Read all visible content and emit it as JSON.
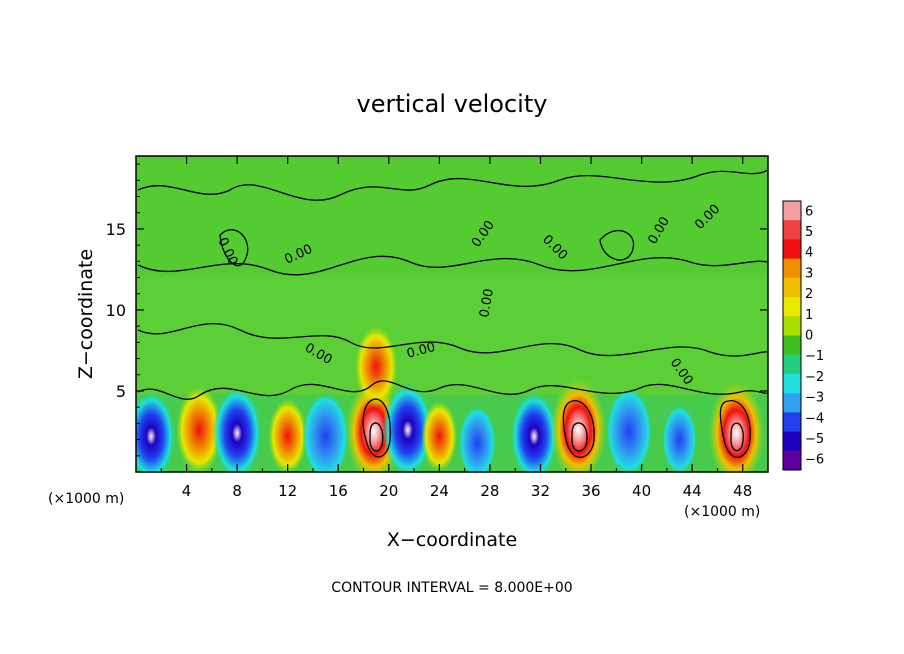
{
  "chart_data": {
    "type": "heatmap",
    "title": "vertical velocity",
    "xlabel": "X−coordinate",
    "ylabel": "Z−coordinate",
    "x_unit_left": "(×1000 m)",
    "x_unit_right": "(×1000 m)",
    "xlim": [
      0,
      50
    ],
    "ylim": [
      0,
      19.5
    ],
    "x_ticks": [
      4,
      8,
      12,
      16,
      20,
      24,
      28,
      32,
      36,
      40,
      44,
      48
    ],
    "x_tick_labels": [
      "4",
      "8",
      "12",
      "16",
      "20",
      "24",
      "28",
      "32",
      "36",
      "40",
      "44",
      "48"
    ],
    "y_ticks": [
      5,
      10,
      15
    ],
    "y_tick_labels": [
      "5",
      "10",
      "15"
    ],
    "colorbar": {
      "labels": [
        "6",
        "5",
        "4",
        "3",
        "2",
        "1",
        "0",
        "−1",
        "−2",
        "−3",
        "−4",
        "−5",
        "−6"
      ],
      "colors": [
        "#f4a0a0",
        "#f04040",
        "#f01010",
        "#f09000",
        "#f0c000",
        "#e8e800",
        "#a8e000",
        "#40c020",
        "#20d080",
        "#20e0e0",
        "#30a0f0",
        "#2040f0",
        "#2000c0",
        "#6000a0"
      ],
      "range": [
        -6,
        6
      ]
    },
    "contour_label": "0.00",
    "contour_interval_text": "CONTOUR INTERVAL = 8.000E+00",
    "cells": [
      {
        "x": 1.2,
        "z": 2.2,
        "w": -4.6
      },
      {
        "x": 5.0,
        "z": 2.6,
        "w": 4.2
      },
      {
        "x": 8.0,
        "z": 2.4,
        "w": -4.8
      },
      {
        "x": 12.0,
        "z": 2.2,
        "w": 2.8
      },
      {
        "x": 15.0,
        "z": 2.2,
        "w": -4.2
      },
      {
        "x": 18.8,
        "z": 2.5,
        "w": 6.0
      },
      {
        "x": 19.0,
        "z": 6.5,
        "w": 3.5
      },
      {
        "x": 21.5,
        "z": 2.6,
        "w": -5.0
      },
      {
        "x": 24.0,
        "z": 2.2,
        "w": 2.2
      },
      {
        "x": 27.0,
        "z": 1.8,
        "w": -2.5
      },
      {
        "x": 31.5,
        "z": 2.2,
        "w": -4.5
      },
      {
        "x": 35.0,
        "z": 2.6,
        "w": 6.0
      },
      {
        "x": 39.0,
        "z": 2.5,
        "w": -4.2
      },
      {
        "x": 43.0,
        "z": 2.0,
        "w": -2.0
      },
      {
        "x": 47.5,
        "z": 2.4,
        "w": 6.0
      }
    ]
  }
}
